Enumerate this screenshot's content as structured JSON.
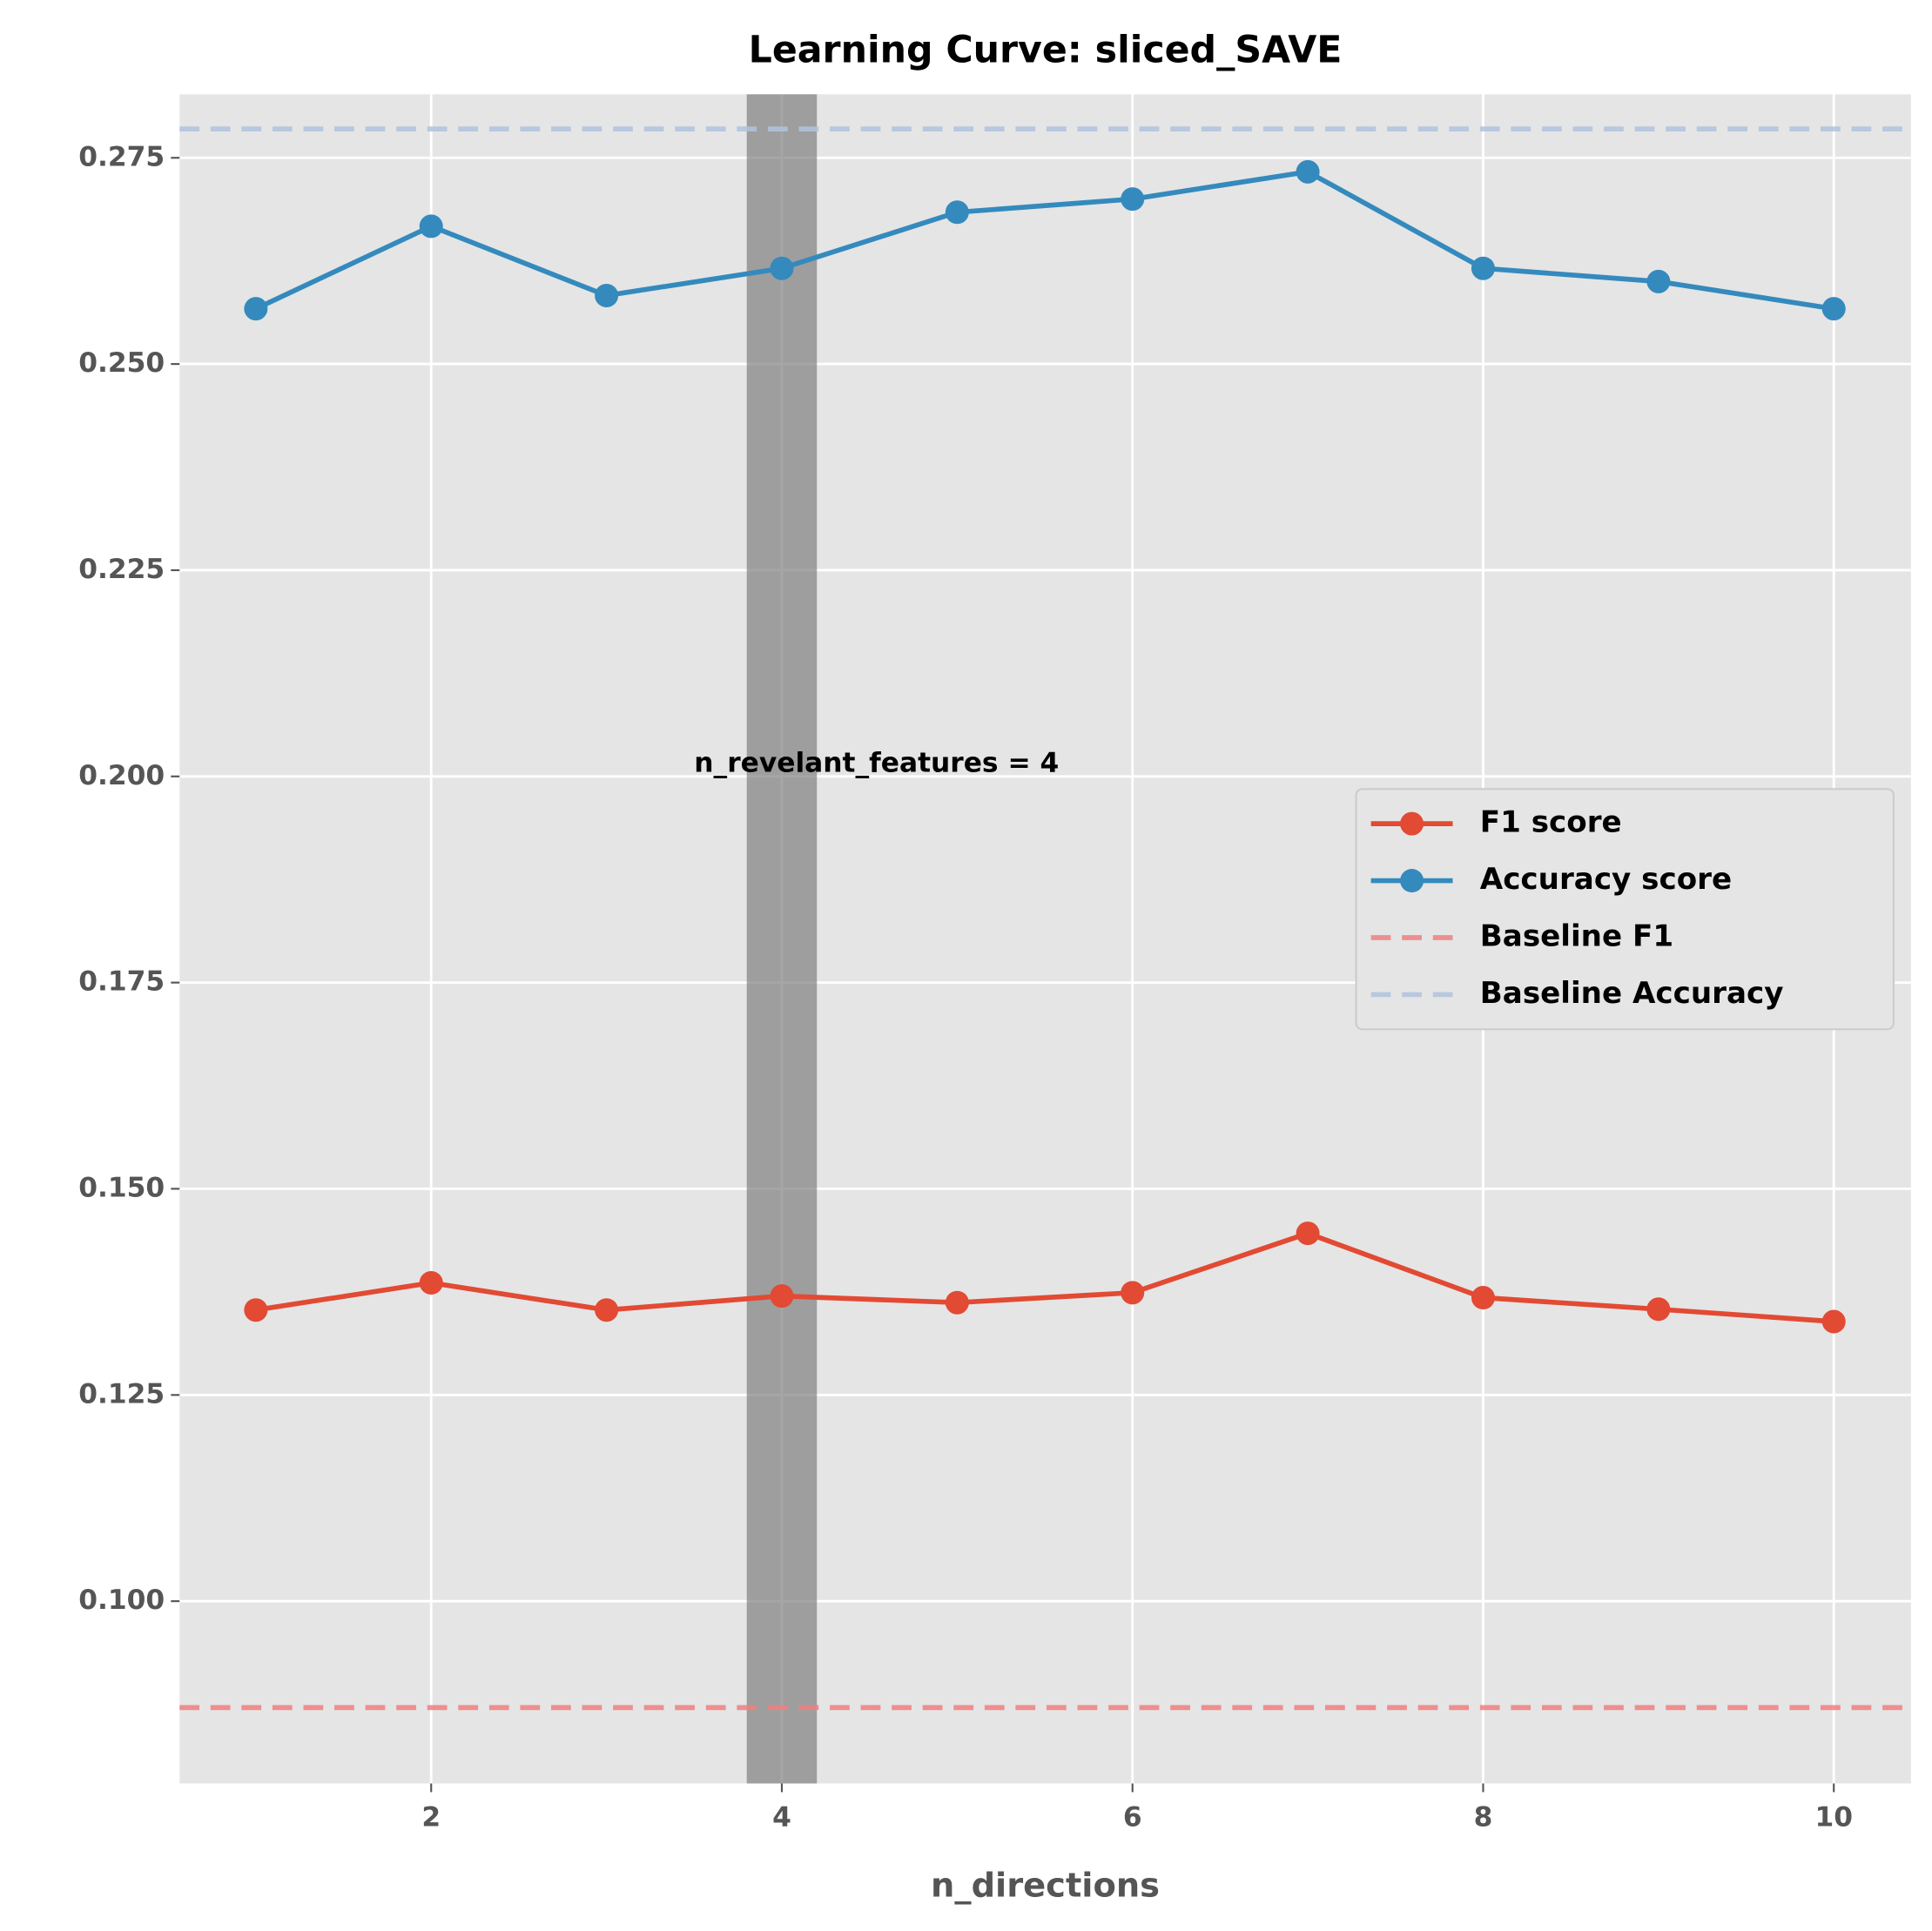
{
  "chart_data": {
    "type": "line",
    "title": "Learning Curve: sliced_SAVE",
    "x_label": "n_directions",
    "x": [
      1,
      2,
      3,
      4,
      5,
      6,
      7,
      8,
      9,
      10
    ],
    "series": [
      {
        "name": "F1 score",
        "color": "#e24a33",
        "values": [
          0.1353,
          0.1386,
          0.1353,
          0.137,
          0.1362,
          0.1374,
          0.1446,
          0.1368,
          0.1354,
          0.1339
        ]
      },
      {
        "name": "Accuracy score",
        "color": "#348abd",
        "values": [
          0.2567,
          0.2667,
          0.2583,
          0.2616,
          0.2684,
          0.27,
          0.2733,
          0.2616,
          0.26,
          0.2567
        ]
      }
    ],
    "baselines": [
      {
        "name": "Baseline F1",
        "color": "#f08080",
        "value": 0.0871
      },
      {
        "name": "Baseline Accuracy",
        "color": "#b0c4de",
        "value": 0.2785
      }
    ],
    "span": {
      "x": [
        3.8,
        4.2
      ],
      "color": "#808080"
    },
    "annotation": {
      "text": "n_revelant_features = 4",
      "x": 3.5,
      "y": 0.2
    },
    "xlim": [
      0.565,
      10.44
    ],
    "ylim": [
      0.0779,
      0.2827
    ],
    "xticks": [
      2,
      4,
      6,
      8,
      10
    ],
    "yticks": [
      0.1,
      0.125,
      0.15,
      0.175,
      0.2,
      0.225,
      0.25,
      0.275
    ],
    "grid": true,
    "legend": "center right"
  }
}
